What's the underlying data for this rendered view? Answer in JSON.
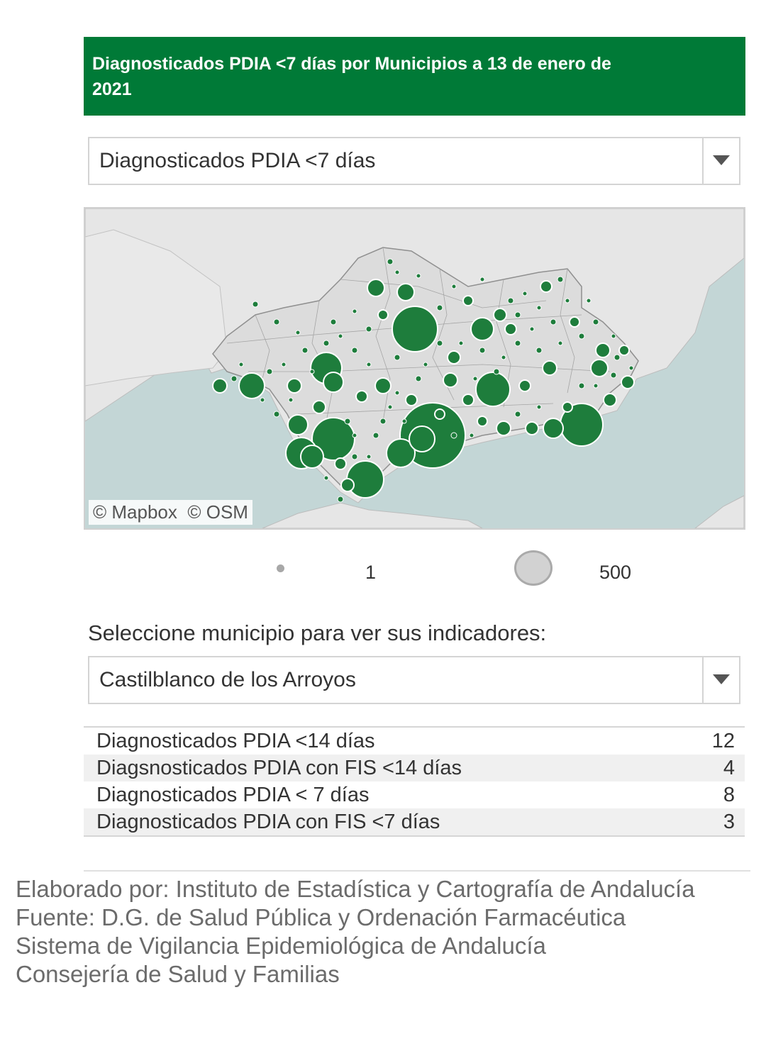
{
  "header": {
    "title": "Diagnosticados PDIA <7 días por Municipios a 13 de enero de 2021"
  },
  "indicator_select": {
    "value": "Diagnosticados PDIA <7 días"
  },
  "map": {
    "attribution": [
      "© Mapbox",
      "© OSM"
    ],
    "marker_color": "#1e7d3c",
    "land_color": "#e6e6e6",
    "water_color": "#c3d6d6"
  },
  "size_legend": {
    "min_label": "1",
    "max_label": "500"
  },
  "municipio_prompt": "Seleccione municipio para ver sus indicadores:",
  "municipio_select": {
    "value": "Castilblanco de los Arroyos"
  },
  "indicators": [
    {
      "label": "Diagnosticados PDIA <14 días",
      "value": "12"
    },
    {
      "label": "Diagsnosticados PDIA con FIS <14 días",
      "value": "4"
    },
    {
      "label": "Diagnosticados PDIA < 7 días",
      "value": "8"
    },
    {
      "label": "Diagnosticados PDIA con FIS <7 días",
      "value": "3"
    }
  ],
  "credits": [
    "Elaborado por: Instituto de Estadística y Cartografía de Andalucía",
    "Fuente: D.G. de Salud Pública y Ordenación Farmacéutica",
    "Sistema de Vigilancia Epidemiológica de Andalucía",
    "Consejería de Salud y Familias"
  ]
}
